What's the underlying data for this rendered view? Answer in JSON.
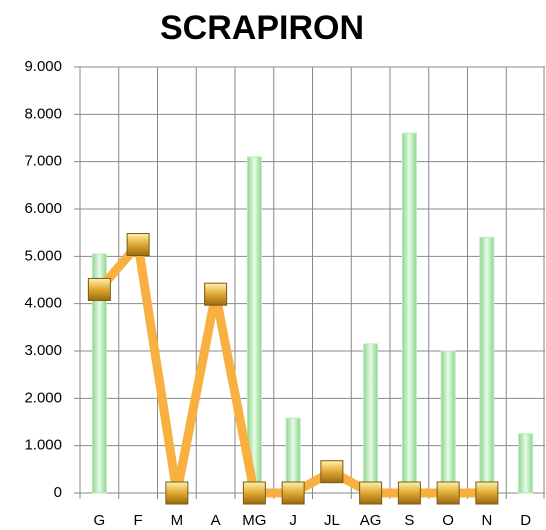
{
  "chart_data": {
    "type": "bar",
    "title": "SCRAPIRON",
    "categories": [
      "G",
      "F",
      "M",
      "A",
      "MG",
      "J",
      "JL",
      "AG",
      "S",
      "O",
      "N",
      "D"
    ],
    "series": [
      {
        "type": "bar",
        "color": "#b8ecb8",
        "values": [
          5050,
          null,
          null,
          null,
          7100,
          1580,
          null,
          3150,
          7600,
          3000,
          5400,
          1250
        ]
      },
      {
        "type": "line",
        "color": "#f8b040",
        "values": [
          4300,
          5250,
          0,
          4200,
          0,
          0,
          450,
          0,
          0,
          0,
          0,
          null
        ]
      }
    ],
    "ylim": [
      0,
      9000
    ],
    "yticks": [
      0,
      {
        "value": 1000,
        "label": "1.000"
      },
      {
        "value": 2000,
        "label": "2.000"
      },
      {
        "value": 3000,
        "label": "3.000"
      },
      {
        "value": 4000,
        "label": "4.000"
      },
      {
        "value": 5000,
        "label": "5.000"
      },
      {
        "value": 6000,
        "label": "6.000"
      },
      {
        "value": 7000,
        "label": "7.000"
      },
      {
        "value": 8000,
        "label": "8.000"
      },
      {
        "value": 9000,
        "label": "9.000"
      }
    ],
    "grid": true
  }
}
